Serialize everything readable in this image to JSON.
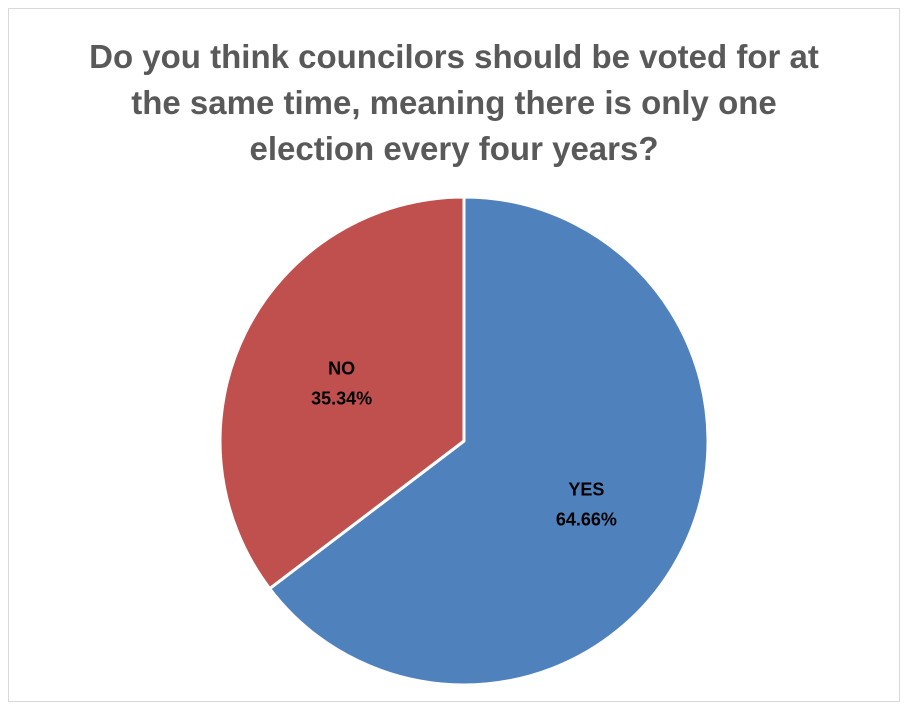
{
  "chart_data": {
    "type": "pie",
    "title_lines": [
      "Do you think councilors should be voted for at",
      "the same time, meaning there is only one",
      "election every four years?"
    ],
    "slices": [
      {
        "label": "YES",
        "value": 64.66,
        "value_label": "64.66%",
        "color": "#4F81BD"
      },
      {
        "label": "NO",
        "value": 35.34,
        "value_label": "35.34%",
        "color": "#C0504D"
      }
    ],
    "start_angle": "12 o'clock",
    "direction": "clockwise",
    "legend": "none",
    "data_labels": "inside"
  }
}
